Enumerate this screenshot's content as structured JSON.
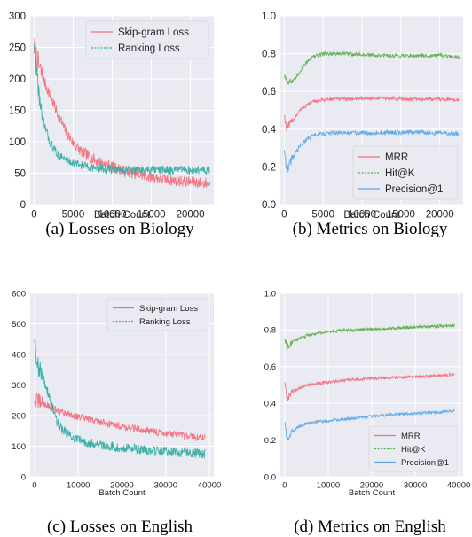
{
  "colors": {
    "background": "#eaeaf2",
    "grid": "#ffffff",
    "red": "#f2707c",
    "teal": "#36ada4",
    "green": "#5cae4a",
    "blue": "#5aa8e8"
  },
  "chart_data": [
    {
      "type": "line",
      "caption": "(a) Losses on Biology",
      "xlabel": "Batch Count",
      "ylabel": "",
      "xlim": [
        -500,
        23000
      ],
      "ylim": [
        0,
        300
      ],
      "xticks": [
        0,
        5000,
        10000,
        15000,
        20000
      ],
      "xtick_labels": [
        "0",
        "5000",
        "10000",
        "15000",
        "20000"
      ],
      "yticks": [
        0,
        50,
        100,
        150,
        200,
        250,
        300
      ],
      "ytick_labels": [
        "0",
        "50",
        "100",
        "150",
        "200",
        "250",
        "300"
      ],
      "grid": true,
      "legend": "top-right",
      "series": [
        {
          "name": "Skip-gram Loss",
          "color": "#f2707c",
          "noise": 9,
          "x": [
            0,
            500,
            1000,
            2000,
            3000,
            4000,
            5000,
            6000,
            8000,
            10000,
            12000,
            14000,
            16000,
            18000,
            20000,
            22500
          ],
          "y": [
            250,
            225,
            205,
            175,
            145,
            118,
            98,
            85,
            70,
            60,
            52,
            46,
            42,
            38,
            36,
            34
          ]
        },
        {
          "name": "Ranking Loss",
          "color": "#36ada4",
          "noise": 7,
          "x": [
            0,
            500,
            1000,
            2000,
            3000,
            4000,
            5000,
            6000,
            8000,
            10000,
            12000,
            14000,
            16000,
            18000,
            20000,
            22500
          ],
          "y": [
            255,
            190,
            140,
            100,
            80,
            72,
            67,
            63,
            58,
            56,
            55,
            55,
            55,
            55,
            55,
            55
          ]
        }
      ]
    },
    {
      "type": "line",
      "caption": "(b) Metrics on Biology",
      "xlabel": "Batch Count",
      "ylabel": "",
      "xlim": [
        -500,
        23000
      ],
      "ylim": [
        0,
        1.0
      ],
      "xticks": [
        0,
        5000,
        10000,
        15000,
        20000
      ],
      "xtick_labels": [
        "0",
        "5000",
        "10000",
        "15000",
        "20000"
      ],
      "yticks": [
        0.0,
        0.2,
        0.4,
        0.6,
        0.8,
        1.0
      ],
      "ytick_labels": [
        "0.0",
        "0.2",
        "0.4",
        "0.6",
        "0.8",
        "1.0"
      ],
      "grid": true,
      "legend": "bottom-right",
      "series": [
        {
          "name": "MRR",
          "color": "#f2707c",
          "noise": 0.01,
          "x": [
            0,
            300,
            1000,
            2000,
            3000,
            4000,
            6000,
            8000,
            12000,
            16000,
            20000,
            22500
          ],
          "y": [
            0.48,
            0.4,
            0.44,
            0.5,
            0.53,
            0.55,
            0.56,
            0.56,
            0.565,
            0.56,
            0.56,
            0.555
          ]
        },
        {
          "name": "Hit@K",
          "color": "#5cae4a",
          "noise": 0.01,
          "x": [
            0,
            300,
            1000,
            1500,
            2500,
            3500,
            5000,
            8000,
            12000,
            16000,
            20000,
            22500
          ],
          "y": [
            0.69,
            0.66,
            0.65,
            0.67,
            0.74,
            0.78,
            0.8,
            0.8,
            0.79,
            0.79,
            0.79,
            0.78
          ]
        },
        {
          "name": "Precision@1",
          "color": "#5aa8e8",
          "noise": 0.012,
          "x": [
            0,
            300,
            1000,
            2000,
            3000,
            4000,
            6000,
            8000,
            12000,
            16000,
            20000,
            22500
          ],
          "y": [
            0.3,
            0.18,
            0.24,
            0.31,
            0.35,
            0.37,
            0.38,
            0.38,
            0.38,
            0.385,
            0.38,
            0.375
          ]
        }
      ]
    },
    {
      "type": "line",
      "caption": "(c) Losses on English",
      "xlabel": "Batch Count",
      "ylabel": "",
      "xlim": [
        -1000,
        41000
      ],
      "ylim": [
        0,
        600
      ],
      "xticks": [
        0,
        10000,
        20000,
        30000,
        40000
      ],
      "xtick_labels": [
        "0",
        "10000",
        "20000",
        "30000",
        "40000"
      ],
      "yticks": [
        0,
        100,
        200,
        300,
        400,
        500,
        600
      ],
      "ytick_labels": [
        "0",
        "100",
        "200",
        "300",
        "400",
        "500",
        "600"
      ],
      "grid": true,
      "legend": "top-right",
      "series": [
        {
          "name": "Skip-gram Loss",
          "color": "#f2707c",
          "noise": 12,
          "x": [
            0,
            1000,
            2000,
            4000,
            6000,
            8000,
            10000,
            15000,
            20000,
            25000,
            30000,
            35000,
            39000
          ],
          "y": [
            250,
            245,
            240,
            225,
            212,
            205,
            195,
            180,
            165,
            152,
            142,
            132,
            128
          ]
        },
        {
          "name": "Ranking Loss",
          "color": "#36ada4",
          "noise": 16,
          "x": [
            0,
            500,
            1000,
            2000,
            3000,
            4000,
            5000,
            6000,
            8000,
            10000,
            15000,
            20000,
            25000,
            30000,
            35000,
            39000
          ],
          "y": [
            460,
            390,
            350,
            320,
            280,
            230,
            185,
            160,
            135,
            120,
            105,
            95,
            88,
            82,
            78,
            75
          ]
        }
      ]
    },
    {
      "type": "line",
      "caption": "(d) Metrics on English",
      "xlabel": "Batch Count",
      "ylabel": "",
      "xlim": [
        -1000,
        41000
      ],
      "ylim": [
        0,
        1.0
      ],
      "xticks": [
        0,
        10000,
        20000,
        30000,
        40000
      ],
      "xtick_labels": [
        "0",
        "10000",
        "20000",
        "30000",
        "40000"
      ],
      "yticks": [
        0.0,
        0.2,
        0.4,
        0.6,
        0.8,
        1.0
      ],
      "ytick_labels": [
        "0.0",
        "0.2",
        "0.4",
        "0.6",
        "0.8",
        "1.0"
      ],
      "grid": true,
      "legend": "bottom-right",
      "series": [
        {
          "name": "MRR",
          "color": "#f2707c",
          "noise": 0.008,
          "x": [
            0,
            500,
            1500,
            3000,
            5000,
            8000,
            12000,
            16000,
            20000,
            25000,
            30000,
            35000,
            39000
          ],
          "y": [
            0.52,
            0.42,
            0.46,
            0.48,
            0.5,
            0.51,
            0.52,
            0.53,
            0.535,
            0.54,
            0.545,
            0.55,
            0.56
          ]
        },
        {
          "name": "Hit@K",
          "color": "#5cae4a",
          "noise": 0.008,
          "x": [
            0,
            500,
            1500,
            3000,
            5000,
            8000,
            12000,
            16000,
            20000,
            25000,
            30000,
            35000,
            39000
          ],
          "y": [
            0.76,
            0.71,
            0.73,
            0.75,
            0.77,
            0.785,
            0.795,
            0.8,
            0.805,
            0.81,
            0.815,
            0.82,
            0.825
          ]
        },
        {
          "name": "Precision@1",
          "color": "#5aa8e8",
          "noise": 0.008,
          "x": [
            0,
            500,
            1500,
            3000,
            5000,
            8000,
            12000,
            16000,
            20000,
            25000,
            30000,
            35000,
            39000
          ],
          "y": [
            0.3,
            0.2,
            0.24,
            0.27,
            0.29,
            0.3,
            0.31,
            0.32,
            0.33,
            0.34,
            0.345,
            0.35,
            0.36
          ]
        }
      ]
    }
  ]
}
